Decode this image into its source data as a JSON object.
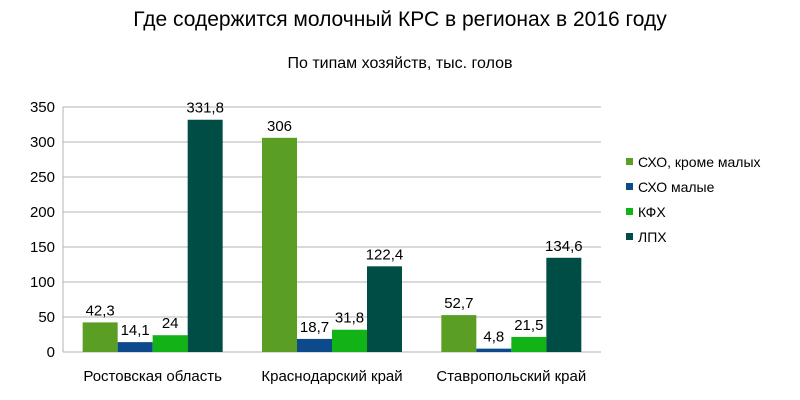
{
  "chart_data": {
    "type": "bar",
    "title": "Где содержится молочный КРС в регионах в 2016 году",
    "subtitle": "По типам хозяйств, тыс. голов",
    "categories": [
      "Ростовская область",
      "Краснодарский край",
      "Ставропольский край"
    ],
    "series": [
      {
        "name": "СХО, кроме малых",
        "color": "#5a9e24",
        "values": [
          42.3,
          306,
          52.7
        ],
        "labels": [
          "42,3",
          "306",
          "52,7"
        ]
      },
      {
        "name": "СХО малые",
        "color": "#0d4a8c",
        "values": [
          14.1,
          18.7,
          4.8
        ],
        "labels": [
          "14,1",
          "18,7",
          "4,8"
        ]
      },
      {
        "name": "КФХ",
        "color": "#12b317",
        "values": [
          24,
          31.8,
          21.5
        ],
        "labels": [
          "24",
          "31,8",
          "21,5"
        ]
      },
      {
        "name": "ЛПХ",
        "color": "#004d45",
        "values": [
          331.8,
          122.4,
          134.6
        ],
        "labels": [
          "331,8",
          "122,4",
          "134,6"
        ]
      }
    ],
    "ylim": [
      0,
      350
    ],
    "yticks": [
      0,
      50,
      100,
      150,
      200,
      250,
      300,
      350
    ],
    "grid": true,
    "legend_position": "right"
  }
}
